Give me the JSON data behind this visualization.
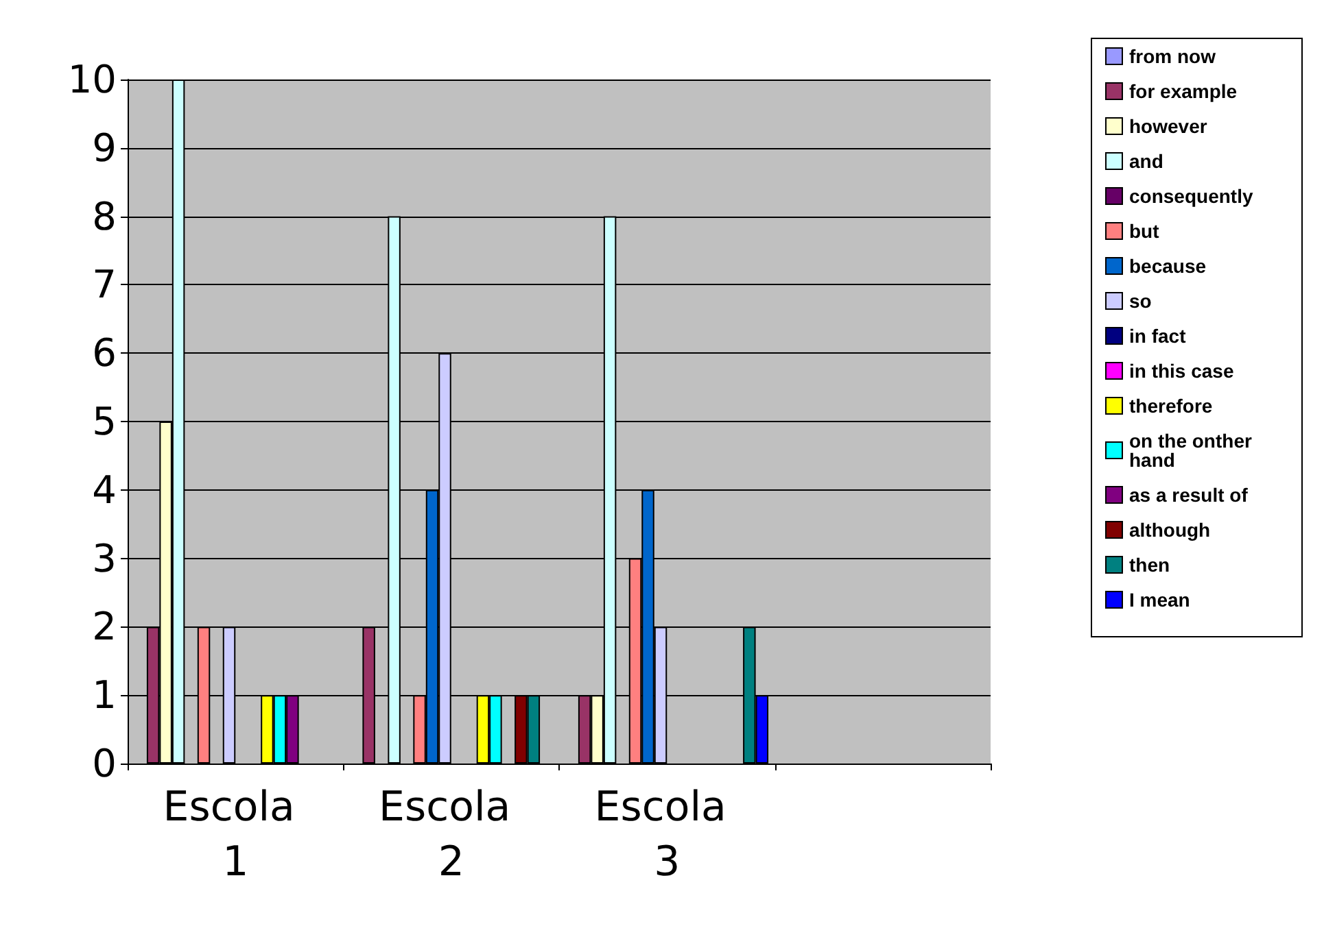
{
  "chart_data": {
    "type": "bar",
    "categories": [
      "Escola 1",
      "Escola 2",
      "Escola 3",
      null
    ],
    "series": [
      {
        "name": "from now",
        "color": "#9999ff",
        "values": [
          0,
          0,
          0,
          null
        ]
      },
      {
        "name": "for example",
        "color": "#993366",
        "values": [
          2,
          2,
          1,
          null
        ]
      },
      {
        "name": "however",
        "color": "#ffffcc",
        "values": [
          5,
          0,
          1,
          null
        ]
      },
      {
        "name": "and",
        "color": "#ccffff",
        "values": [
          10,
          8,
          8,
          null
        ]
      },
      {
        "name": "consequently",
        "color": "#660066",
        "values": [
          0,
          0,
          0,
          null
        ]
      },
      {
        "name": "but",
        "color": "#ff8080",
        "values": [
          2,
          1,
          3,
          null
        ]
      },
      {
        "name": "because",
        "color": "#0066cc",
        "values": [
          0,
          4,
          4,
          null
        ]
      },
      {
        "name": "so",
        "color": "#ccccff",
        "values": [
          2,
          6,
          2,
          null
        ]
      },
      {
        "name": "in fact",
        "color": "#000080",
        "values": [
          0,
          0,
          0,
          null
        ]
      },
      {
        "name": "in this case",
        "color": "#ff00ff",
        "values": [
          0,
          0,
          0,
          null
        ]
      },
      {
        "name": "therefore",
        "color": "#ffff00",
        "values": [
          1,
          1,
          0,
          null
        ]
      },
      {
        "name": "on the onther hand",
        "color": "#00ffff",
        "values": [
          1,
          1,
          0,
          null
        ]
      },
      {
        "name": "as a result of",
        "color": "#800080",
        "values": [
          1,
          0,
          0,
          null
        ]
      },
      {
        "name": "although",
        "color": "#800000",
        "values": [
          0,
          1,
          0,
          null
        ]
      },
      {
        "name": "then",
        "color": "#008080",
        "values": [
          0,
          1,
          2,
          null
        ]
      },
      {
        "name": "I mean",
        "color": "#0000ff",
        "values": [
          0,
          0,
          1,
          null
        ]
      }
    ],
    "ylim": [
      0,
      10
    ],
    "yticks": [
      0,
      1,
      2,
      3,
      4,
      5,
      6,
      7,
      8,
      9,
      10
    ],
    "grid": "y",
    "legend": "right"
  }
}
